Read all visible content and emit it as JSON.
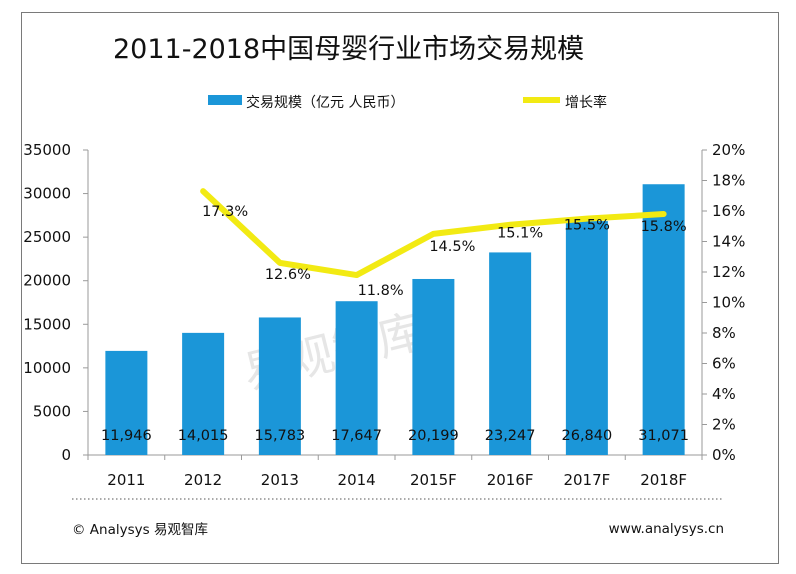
{
  "colors": {
    "bar": "#1b96d8",
    "line": "#f2ea13",
    "axis": "#9a9a9a",
    "text": "#111111"
  },
  "footer": {
    "left": "© Analysys 易观智库",
    "right": "www.analysys.cn"
  },
  "watermark": "易观智库",
  "chart_data": {
    "type": "bar",
    "title": "2011-2018中国母婴行业市场交易规模",
    "categories": [
      "2011",
      "2012",
      "2013",
      "2014",
      "2015F",
      "2016F",
      "2017F",
      "2018F"
    ],
    "series": [
      {
        "name": "交易规模（亿元 人民币）",
        "type": "bar",
        "axis": "left",
        "values": [
          11946,
          14015,
          15783,
          17647,
          20199,
          23247,
          26840,
          31071
        ],
        "labels": [
          "11,946",
          "14,015",
          "15,783",
          "17,647",
          "20,199",
          "23,247",
          "26,840",
          "31,071"
        ]
      },
      {
        "name": "增长率",
        "type": "line",
        "axis": "right",
        "values": [
          null,
          17.3,
          12.6,
          11.8,
          14.5,
          15.1,
          15.5,
          15.8
        ],
        "labels": [
          "",
          "17.3%",
          "12.6%",
          "11.8%",
          "14.5%",
          "15.1%",
          "15.5%",
          "15.8%"
        ]
      }
    ],
    "y_left": {
      "min": 0,
      "max": 35000,
      "step": 5000,
      "ticks": [
        "0",
        "5000",
        "10000",
        "15000",
        "20000",
        "25000",
        "30000",
        "35000"
      ]
    },
    "y_right": {
      "min": 0,
      "max": 20,
      "step": 2,
      "ticks": [
        "0%",
        "2%",
        "4%",
        "6%",
        "8%",
        "10%",
        "12%",
        "14%",
        "16%",
        "18%",
        "20%"
      ]
    },
    "legend": "top",
    "grid": false
  }
}
